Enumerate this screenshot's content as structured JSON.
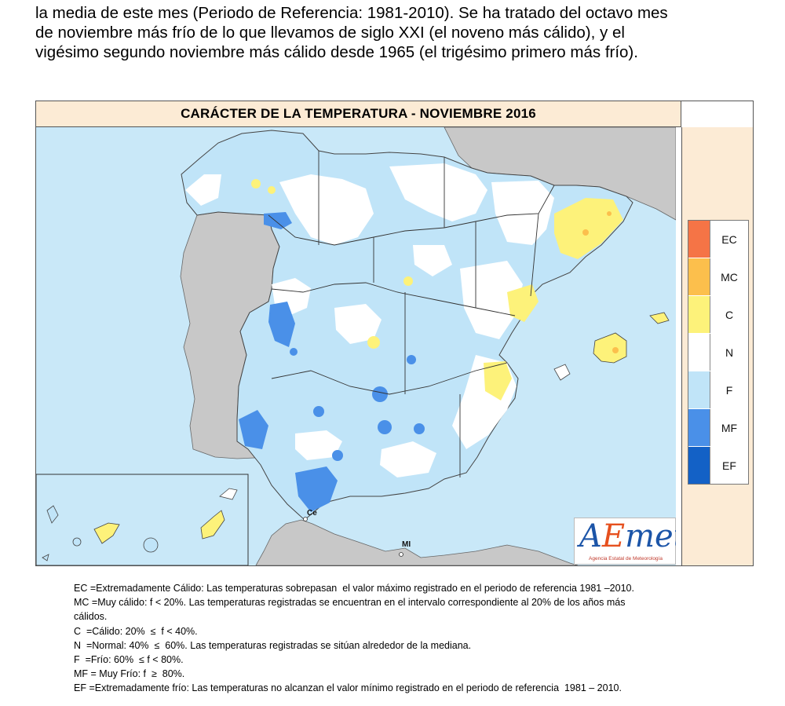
{
  "intro": {
    "line1": "la media de este mes (Periodo de Referencia: 1981-2010). Se ha tratado del octavo mes",
    "line2": "de noviembre más frío de lo que llevamos de siglo XXI (el noveno más cálido), y el",
    "line3": "vigésimo segundo noviembre más cálido desde 1965 (el trigésimo primero más frío)."
  },
  "map": {
    "title": "CARÁCTER DE LA TEMPERATURA - NOVIEMBRE 2016",
    "cities": {
      "ceuta": "Ce",
      "melilla": "MI"
    },
    "colors": {
      "sea": "#c9e8f8",
      "land_other": "#c8c8c8",
      "F": "#c0e4f8",
      "N": "#ffffff",
      "C": "#fdf27a",
      "MF": "#4a90e8",
      "MC": "#fcbf4c",
      "EC": "#f57446"
    }
  },
  "legend": [
    {
      "code": "EC",
      "color": "#f57446"
    },
    {
      "code": "MC",
      "color": "#fcbf4c"
    },
    {
      "code": "C",
      "color": "#fdf27a"
    },
    {
      "code": "N",
      "color": "#ffffff"
    },
    {
      "code": "F",
      "color": "#c0e4f8"
    },
    {
      "code": "MF",
      "color": "#4a90e8"
    },
    {
      "code": "EF",
      "color": "#1361c6"
    }
  ],
  "logo": {
    "mark_a": "A",
    "mark_e": "E",
    "mark_rest": "met",
    "subtitle": "Agencia Estatal de Meteorología"
  },
  "notes": [
    "EC =Extremadamente Cálido: Las temperaturas sobrepasan  el valor máximo registrado en el periodo de referencia 1981 –2010.",
    "MC =Muy cálido: f < 20%. Las temperaturas registradas se encuentran en el intervalo correspondiente al 20% de los años más",
    "cálidos.",
    "C  =Cálido: 20%  ≤  f < 40%.",
    "N  =Normal: 40%  ≤  60%. Las temperaturas registradas se sitúan alrededor de la mediana.",
    "F  =Frío: 60%  ≤ f < 80%.",
    "MF = Muy Frío: f  ≥  80%.",
    "EF =Extremadamente frío: Las temperaturas no alcanzan el valor mínimo registrado en el periodo de referencia  1981 – 2010."
  ]
}
